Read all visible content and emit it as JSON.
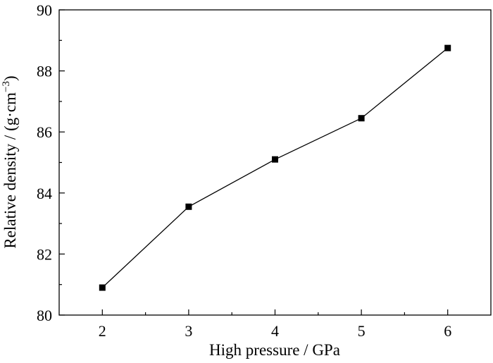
{
  "chart_data": {
    "type": "line",
    "x": [
      2,
      3,
      4,
      5,
      6
    ],
    "series": [
      {
        "values": [
          80.9,
          83.55,
          85.1,
          86.45,
          88.75
        ],
        "marker": "square",
        "color": "#000000"
      }
    ],
    "xlabel": "High pressure / GPa",
    "ylabel_main": "Relative density / (g·cm",
    "ylabel_sup": "−3",
    "ylabel_close": ")",
    "xlim": [
      1.5,
      6.5
    ],
    "ylim": [
      80,
      90
    ],
    "xticks": [
      "2",
      "3",
      "4",
      "5",
      "6"
    ],
    "yticks": [
      "80",
      "82",
      "84",
      "86",
      "88",
      "90"
    ],
    "grid": false,
    "legend": "none"
  }
}
